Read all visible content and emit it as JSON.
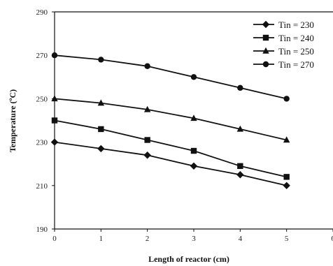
{
  "chart_data": {
    "type": "line",
    "xlabel": "Length of reactor (cm)",
    "ylabel": "Temperature (ºC)",
    "x": [
      0,
      1,
      2,
      3,
      4,
      5
    ],
    "xlim": [
      0,
      6
    ],
    "ylim": [
      190,
      290
    ],
    "xticks": [
      0,
      1,
      2,
      3,
      4,
      5,
      6
    ],
    "yticks": [
      190,
      210,
      230,
      250,
      270,
      290
    ],
    "grid": false,
    "legend": "top-right",
    "series": [
      {
        "name": "Tin = 230",
        "marker": "diamond",
        "values": [
          230,
          227,
          224,
          219,
          215,
          210
        ]
      },
      {
        "name": "Tin = 240",
        "marker": "square",
        "values": [
          240,
          236,
          231,
          226,
          219,
          214
        ]
      },
      {
        "name": "Tin = 250",
        "marker": "triangle",
        "values": [
          250,
          248,
          245,
          241,
          236,
          231
        ]
      },
      {
        "name": "Tin = 270",
        "marker": "circle",
        "values": [
          270,
          268,
          265,
          260,
          255,
          250
        ]
      }
    ],
    "line_color": "#111111"
  }
}
